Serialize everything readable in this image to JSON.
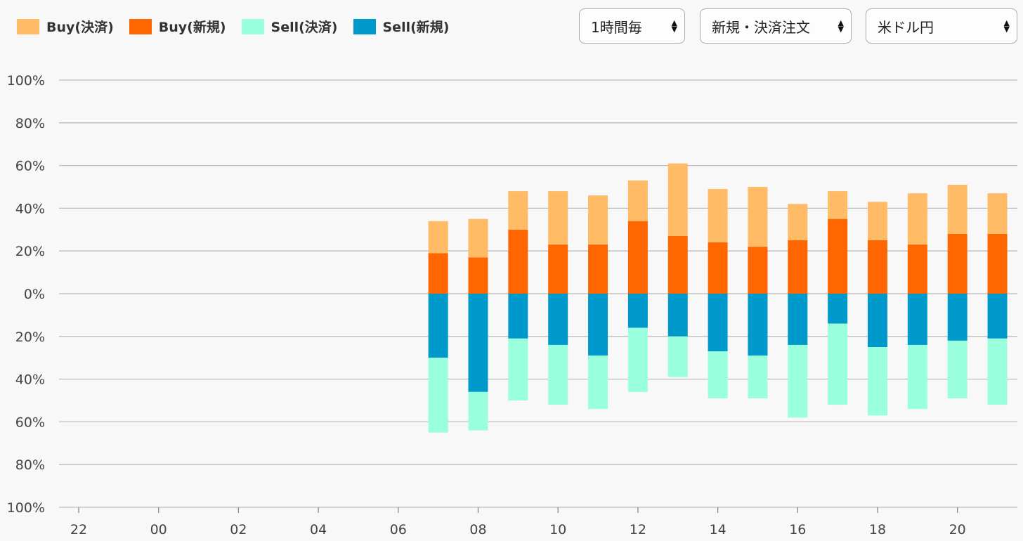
{
  "legend": {
    "items": [
      {
        "label": "Buy(決済)",
        "color": "#ffbb66"
      },
      {
        "label": "Buy(新規)",
        "color": "#ff6600"
      },
      {
        "label": "Sell(決済)",
        "color": "#99ffdd"
      },
      {
        "label": "Sell(新規)",
        "color": "#0099cc"
      }
    ]
  },
  "controls": {
    "interval": "1時間毎",
    "order_type": "新規・決済注文",
    "pair": "米ドル円"
  },
  "chart_data": {
    "type": "bar",
    "stacked": true,
    "diverging": true,
    "categories": [
      "07",
      "08",
      "09",
      "10",
      "11",
      "12",
      "13",
      "14",
      "15",
      "16",
      "17",
      "18",
      "19",
      "20",
      "21"
    ],
    "x_tick_labels": [
      "22",
      "00",
      "02",
      "04",
      "06",
      "08",
      "10",
      "12",
      "14",
      "16",
      "18",
      "20"
    ],
    "y_tick_labels": [
      "100%",
      "80%",
      "60%",
      "40%",
      "20%",
      "0%",
      "20%",
      "40%",
      "60%",
      "80%",
      "100%"
    ],
    "ylim": [
      -100,
      100
    ],
    "grid": true,
    "legend_position": "top-left",
    "series": [
      {
        "name": "Buy(新規)",
        "color": "#ff6600",
        "values": [
          19,
          17,
          30,
          23,
          23,
          34,
          27,
          24,
          22,
          25,
          35,
          25,
          23,
          28,
          28
        ]
      },
      {
        "name": "Buy(決済)",
        "color": "#ffbb66",
        "values": [
          15,
          18,
          18,
          25,
          23,
          19,
          34,
          25,
          28,
          17,
          13,
          18,
          24,
          23,
          19
        ]
      },
      {
        "name": "Sell(新規)",
        "color": "#0099cc",
        "values": [
          30,
          46,
          21,
          24,
          29,
          16,
          20,
          27,
          29,
          24,
          14,
          25,
          24,
          22,
          21
        ]
      },
      {
        "name": "Sell(決済)",
        "color": "#99ffdd",
        "values": [
          35,
          18,
          29,
          28,
          25,
          30,
          19,
          22,
          20,
          34,
          38,
          32,
          30,
          27,
          31
        ]
      }
    ]
  }
}
